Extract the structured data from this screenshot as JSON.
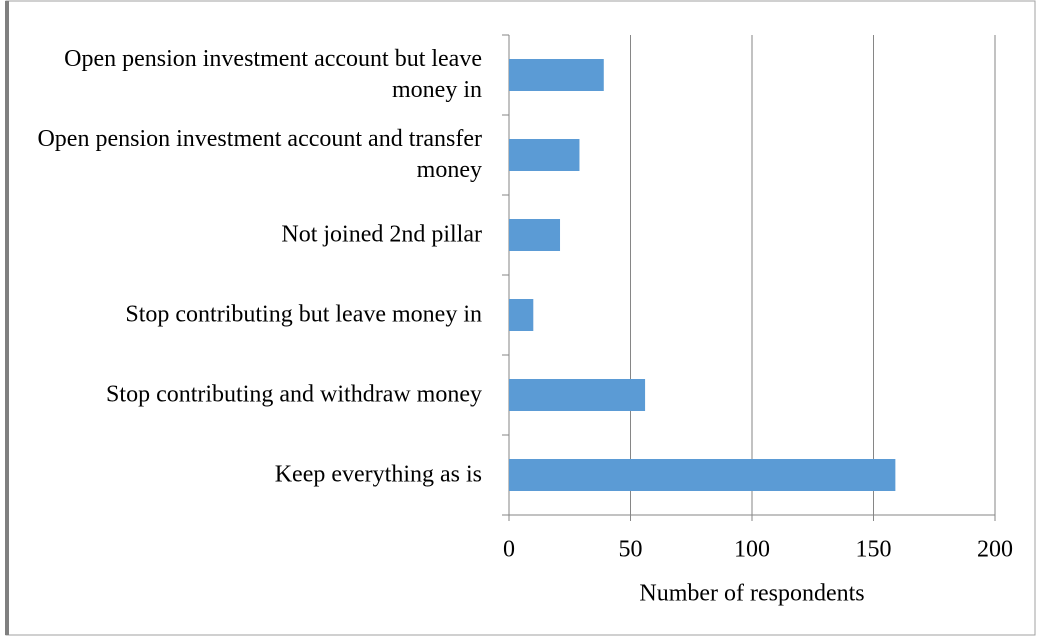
{
  "chart_data": {
    "type": "bar",
    "orientation": "horizontal",
    "categories": [
      "Open pension investment account but leave money in",
      "Open pension investment account and transfer money",
      "Not joined 2nd pillar",
      "Stop contributing but leave money in",
      "Stop contributing and withdraw money",
      "Keep everything as is"
    ],
    "values": [
      39,
      29,
      21,
      10,
      56,
      159
    ],
    "color": "#5b9bd5",
    "x_label": "Number of respondents",
    "xlim": [
      0,
      200
    ],
    "xticks": [
      0,
      50,
      100,
      150,
      200
    ],
    "grid": true
  }
}
